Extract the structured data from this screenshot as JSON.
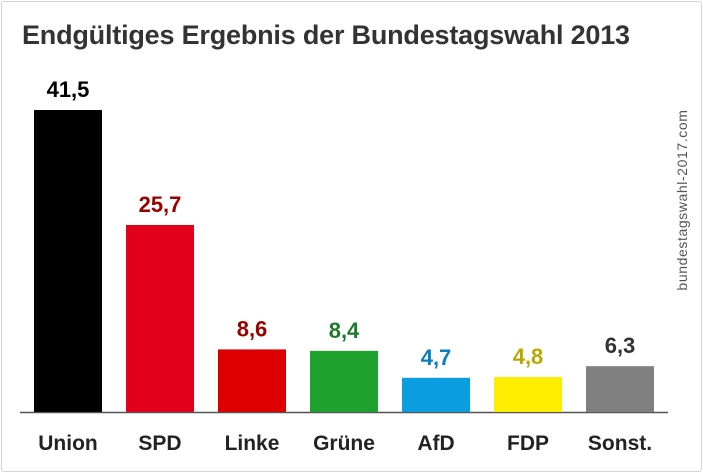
{
  "title": "Endgültiges Ergebnis der Bundestagswahl 2013",
  "watermark": "bundestagswahl-2017.com",
  "chart_data": {
    "type": "bar",
    "title": "Endgültiges Ergebnis der Bundestagswahl 2013",
    "xlabel": "",
    "ylabel": "",
    "categories": [
      "Union",
      "SPD",
      "Linke",
      "Grüne",
      "AfD",
      "FDP",
      "Sonst."
    ],
    "values": [
      41.5,
      25.7,
      8.6,
      8.4,
      4.7,
      4.8,
      6.3
    ],
    "value_labels": [
      "41,5",
      "25,7",
      "8,6",
      "8,4",
      "4,7",
      "4,8",
      "6,3"
    ],
    "bar_colors": [
      "#000000",
      "#e2001a",
      "#dc0000",
      "#1fa12d",
      "#0a9de0",
      "#ffed00",
      "#808080"
    ],
    "label_colors": [
      "#000000",
      "#990000",
      "#990000",
      "#1f7a2d",
      "#0a7fbf",
      "#b8a800",
      "#333333"
    ],
    "ylim": [
      0,
      41.5
    ],
    "grid": false,
    "legend": "none"
  }
}
